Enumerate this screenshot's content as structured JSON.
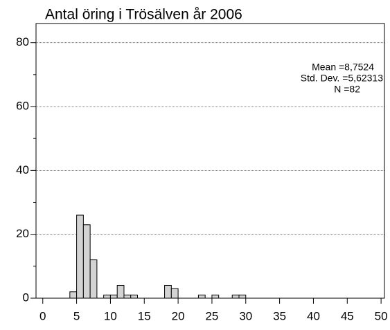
{
  "chart_data": {
    "type": "histogram",
    "title": "Antal öring i Trösälven år 2006",
    "bins": [
      4,
      5,
      6,
      7,
      8,
      9,
      10,
      11,
      12,
      13,
      14,
      15,
      16,
      17,
      18,
      19,
      20,
      21,
      22,
      23,
      24,
      25,
      26,
      27,
      28,
      29,
      30
    ],
    "values": [
      2,
      26,
      23,
      12,
      0,
      1,
      1,
      4,
      1,
      1,
      0,
      0,
      0,
      0,
      4,
      3,
      0,
      0,
      0,
      1,
      0,
      1,
      0,
      0,
      1,
      1
    ],
    "color": "#d3d3d3",
    "xlim": [
      -1,
      50.5
    ],
    "xticks": [
      0,
      5,
      10,
      15,
      20,
      25,
      30,
      35,
      40,
      45,
      50
    ],
    "ylim": [
      0,
      86
    ],
    "yticks": [
      0,
      20,
      40,
      60,
      80
    ],
    "y_minor_ticks": [
      10,
      30,
      50,
      70
    ],
    "grid": true,
    "annotations": [
      "Mean =8,7524",
      "Std. Dev. =5,62313",
      "N =82"
    ]
  }
}
